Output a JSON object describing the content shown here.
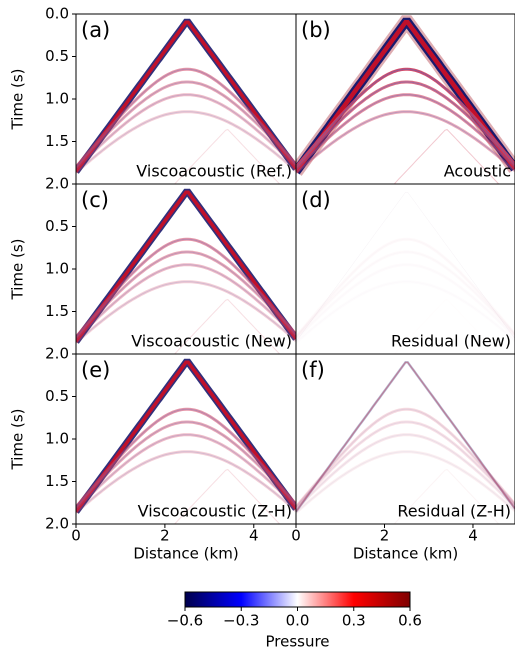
{
  "chart_data": [
    {
      "type": "seismic",
      "annotation": "(a)",
      "label": "Viscoacoustic (Ref.)",
      "ylabel": "Time (s)",
      "xlim": [
        0,
        4.95
      ],
      "ylim": [
        2,
        0
      ],
      "yticks": [
        {
          "value": 0,
          "label": "0.0"
        },
        0.5,
        {
          "value": 1,
          "label": "1.0"
        },
        1.5,
        {
          "value": 2,
          "label": "2.0"
        }
      ]
    },
    {
      "type": "seismic",
      "annotation": "(b)",
      "label": "Acoustic",
      "xlim": [
        0,
        4.95
      ],
      "ylim": [
        2,
        0
      ]
    },
    {
      "type": "seismic",
      "annotation": "(c)",
      "label": "Viscoacoustic (New)",
      "ylabel": "Time (s)",
      "xlim": [
        0,
        4.95
      ],
      "ylim": [
        2,
        0
      ],
      "yticks": [
        0.5,
        {
          "value": 1,
          "label": "1.0"
        },
        1.5,
        {
          "value": 2,
          "label": "2.0"
        }
      ]
    },
    {
      "type": "seismic",
      "annotation": "(d)",
      "label": "Residual (New)",
      "xlim": [
        0,
        4.95
      ],
      "ylim": [
        2,
        0
      ]
    },
    {
      "type": "seismic",
      "annotation": "(e)",
      "label": "Viscoacoustic (Z-H)",
      "ylabel": "Time (s)",
      "xlabel": "Distance (km)",
      "xlim": [
        0,
        4.95
      ],
      "ylim": [
        2,
        0
      ],
      "yticks": [
        0.5,
        {
          "value": 1,
          "label": "1.0"
        },
        1.5,
        {
          "value": 2,
          "label": "2.0"
        }
      ],
      "xticks": [
        0,
        2,
        4
      ]
    },
    {
      "type": "seismic",
      "annotation": "(f)",
      "label": "Residual (Z-H)",
      "xlabel": "Distance (km)",
      "xlim": [
        0,
        4.95
      ],
      "ylim": [
        2,
        0
      ],
      "xticks": [
        0,
        2,
        4
      ]
    },
    {
      "type": "colorbar",
      "xlabel": "Pressure",
      "xlim": [
        -0.6,
        0.6
      ],
      "xticks": [
        {
          "value": -0.6,
          "label": "−0.6"
        },
        {
          "value": -0.3,
          "label": "−0.3"
        },
        {
          "value": 0,
          "label": "0.0"
        },
        0.3,
        0.6
      ]
    }
  ]
}
